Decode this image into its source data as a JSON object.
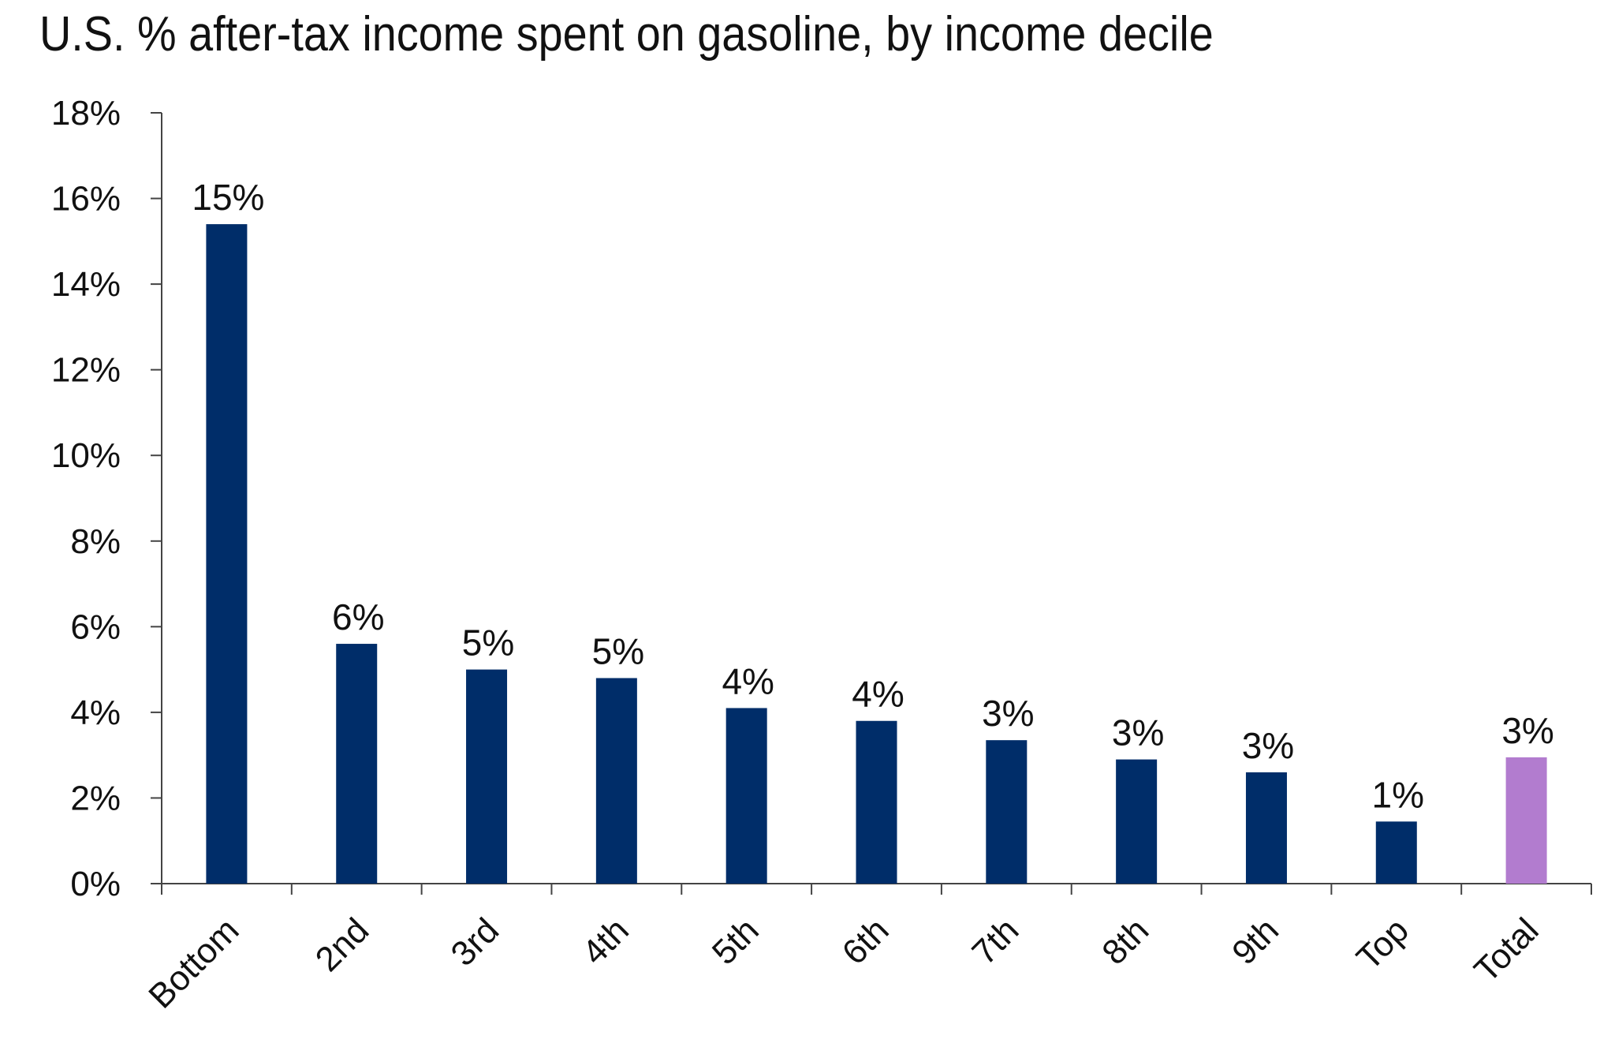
{
  "chart_data": {
    "type": "bar",
    "title": "U.S. % after-tax income spent on gasoline, by income decile",
    "xlabel": "",
    "ylabel": "",
    "categories": [
      "Bottom",
      "2nd",
      "3rd",
      "4th",
      "5th",
      "6th",
      "7th",
      "8th",
      "9th",
      "Top",
      "Total"
    ],
    "values": [
      15.4,
      5.6,
      5.0,
      4.8,
      4.1,
      3.8,
      3.35,
      2.9,
      2.6,
      1.45,
      2.95
    ],
    "data_labels": [
      "15%",
      "6%",
      "5%",
      "5%",
      "4%",
      "4%",
      "3%",
      "3%",
      "3%",
      "1%",
      "3%"
    ],
    "ylim": [
      0,
      18
    ],
    "y_ticks": [
      0,
      2,
      4,
      6,
      8,
      10,
      12,
      14,
      16,
      18
    ],
    "y_tick_labels": [
      "0%",
      "2%",
      "4%",
      "6%",
      "8%",
      "10%",
      "12%",
      "14%",
      "16%",
      "18%"
    ],
    "grid": false,
    "legend": "none",
    "colors": {
      "bar": "#002d69",
      "highlight": "#b27ccf",
      "axis": "#444444",
      "text": "#111111"
    },
    "highlight_category": "Total"
  }
}
